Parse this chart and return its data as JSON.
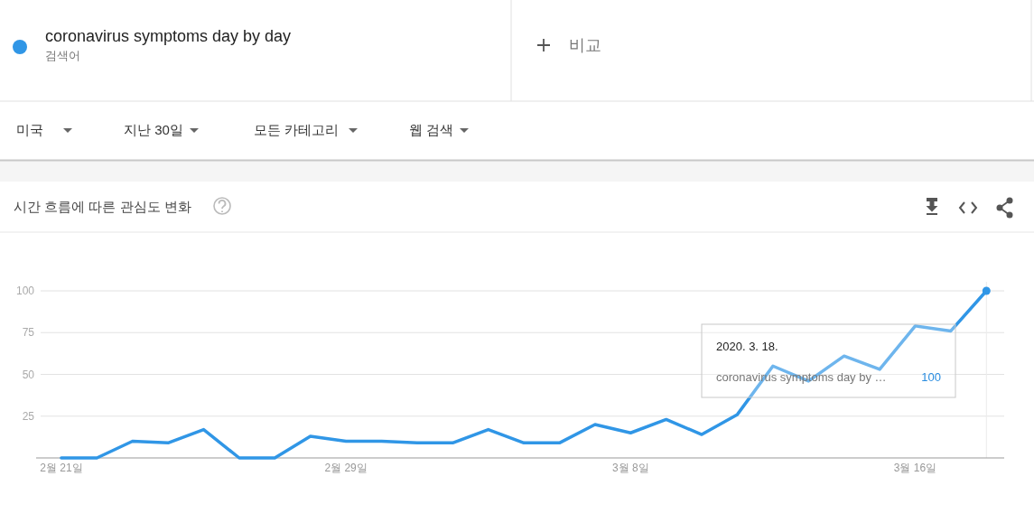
{
  "chart_data": {
    "type": "line",
    "title": "시간 흐름에 따른 관심도 변화",
    "x": [
      "2020-02-21",
      "2020-02-22",
      "2020-02-23",
      "2020-02-24",
      "2020-02-25",
      "2020-02-26",
      "2020-02-27",
      "2020-02-28",
      "2020-02-29",
      "2020-03-01",
      "2020-03-02",
      "2020-03-03",
      "2020-03-04",
      "2020-03-05",
      "2020-03-06",
      "2020-03-07",
      "2020-03-08",
      "2020-03-09",
      "2020-03-10",
      "2020-03-11",
      "2020-03-12",
      "2020-03-13",
      "2020-03-14",
      "2020-03-15",
      "2020-03-16",
      "2020-03-17",
      "2020-03-18"
    ],
    "series": [
      {
        "name": "coronavirus symptoms day by day",
        "color": "#3096e6",
        "values": [
          0,
          0,
          10,
          9,
          17,
          0,
          0,
          13,
          10,
          10,
          9,
          9,
          17,
          9,
          9,
          20,
          15,
          23,
          14,
          26,
          55,
          46,
          61,
          53,
          79,
          76,
          100
        ]
      }
    ],
    "xlim": [
      "2020-02-20T07:00",
      "2020-03-18T12:00"
    ],
    "xticks": [
      {
        "value": "2020-02-21",
        "label": "2월 21일"
      },
      {
        "value": "2020-02-29",
        "label": "2월 29일"
      },
      {
        "value": "2020-03-08",
        "label": "3월 8일"
      },
      {
        "value": "2020-03-16",
        "label": "3월 16일"
      }
    ],
    "ylim": [
      0,
      100
    ],
    "yticks": [
      25,
      50,
      75,
      100
    ],
    "grid": "y",
    "legend": "top",
    "ref_lines": [
      {
        "axis": "x",
        "value": "2020-03-18",
        "color": "#ececec"
      }
    ],
    "annotations": [
      "검색어",
      "비교",
      "미국",
      "지난 30일",
      "모든 카테고리",
      "웹 검색",
      "2020. 3. 18.",
      "coronavirus symptoms day by …",
      "100"
    ]
  }
}
